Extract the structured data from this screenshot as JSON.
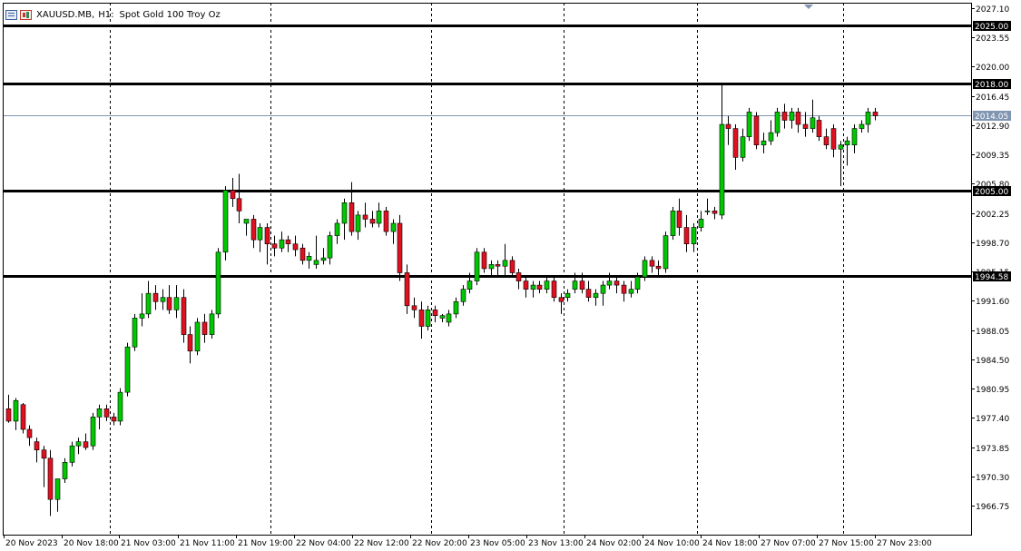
{
  "header": {
    "symbol": "XAUUSD.MB,",
    "timeframe": "H1:",
    "description": "Spot Gold 100 Troy Oz",
    "icons": [
      "market-watch-icon",
      "chart-type-icon"
    ]
  },
  "colors": {
    "background": "#ffffff",
    "bull": "#00c800",
    "bear": "#e01020",
    "wick": "#000000",
    "grid": "#000000",
    "level_line": "#000000",
    "bid_line": "#7f95b1",
    "bid_label_bg": "#7f95b1",
    "level_label_bg": "#000000",
    "label_text": "#ffffff"
  },
  "chart_data": {
    "type": "candlestick",
    "symbol": "XAUUSD.MB",
    "timeframe": "H1",
    "title": "Spot Gold 100 Troy Oz",
    "ylim": [
      1963.5,
      2027.5
    ],
    "y_ticks": [
      "2027.10",
      "2023.55",
      "2020.00",
      "2016.45",
      "2012.90",
      "2009.35",
      "2005.80",
      "2002.25",
      "1998.70",
      "1995.15",
      "1991.60",
      "1988.05",
      "1984.50",
      "1980.95",
      "1977.40",
      "1973.85",
      "1970.30",
      "1966.75"
    ],
    "x_ticks": [
      "20 Nov 2023",
      "20 Nov 18:00",
      "21 Nov 03:00",
      "21 Nov 11:00",
      "21 Nov 19:00",
      "22 Nov 04:00",
      "22 Nov 12:00",
      "22 Nov 20:00",
      "23 Nov 05:00",
      "23 Nov 13:00",
      "24 Nov 02:00",
      "24 Nov 10:00",
      "24 Nov 18:00",
      "27 Nov 07:00",
      "27 Nov 15:00",
      "27 Nov 23:00"
    ],
    "session_separators_after_bar": [
      14,
      37,
      60,
      79,
      98,
      119
    ],
    "horizontal_levels": [
      {
        "price": 2025.0,
        "label": "2025.00"
      },
      {
        "price": 2018.0,
        "label": "2018.00"
      },
      {
        "price": 2005.0,
        "label": "2005.00"
      },
      {
        "price": 1994.58,
        "label": "1994.58"
      }
    ],
    "bid_line": {
      "price": 2014.05,
      "label": "2014.05"
    },
    "bars": [
      {
        "o": 1978.5,
        "h": 1980.2,
        "l": 1976.8,
        "c": 1977.0
      },
      {
        "o": 1977.0,
        "h": 1979.8,
        "l": 1975.9,
        "c": 1979.5
      },
      {
        "o": 1979.0,
        "h": 1979.2,
        "l": 1975.5,
        "c": 1976.0
      },
      {
        "o": 1976.0,
        "h": 1976.5,
        "l": 1974.0,
        "c": 1975.0
      },
      {
        "o": 1974.5,
        "h": 1975.0,
        "l": 1972.0,
        "c": 1973.5
      },
      {
        "o": 1973.5,
        "h": 1974.0,
        "l": 1969.0,
        "c": 1972.5
      },
      {
        "o": 1972.5,
        "h": 1973.5,
        "l": 1965.5,
        "c": 1967.5
      },
      {
        "o": 1967.5,
        "h": 1970.0,
        "l": 1966.0,
        "c": 1970.0
      },
      {
        "o": 1970.0,
        "h": 1972.5,
        "l": 1969.5,
        "c": 1972.0
      },
      {
        "o": 1972.0,
        "h": 1974.5,
        "l": 1971.5,
        "c": 1974.0
      },
      {
        "o": 1974.0,
        "h": 1975.0,
        "l": 1973.0,
        "c": 1974.5
      },
      {
        "o": 1974.5,
        "h": 1975.5,
        "l": 1973.5,
        "c": 1973.8
      },
      {
        "o": 1974.0,
        "h": 1978.0,
        "l": 1973.5,
        "c": 1977.5
      },
      {
        "o": 1977.5,
        "h": 1979.0,
        "l": 1976.0,
        "c": 1978.5
      },
      {
        "o": 1978.5,
        "h": 1979.0,
        "l": 1977.0,
        "c": 1977.5
      },
      {
        "o": 1977.5,
        "h": 1978.0,
        "l": 1976.5,
        "c": 1977.0
      },
      {
        "o": 1977.0,
        "h": 1981.0,
        "l": 1976.5,
        "c": 1980.5
      },
      {
        "o": 1980.5,
        "h": 1986.5,
        "l": 1980.0,
        "c": 1986.0
      },
      {
        "o": 1986.0,
        "h": 1990.0,
        "l": 1985.5,
        "c": 1989.5
      },
      {
        "o": 1989.5,
        "h": 1992.5,
        "l": 1988.5,
        "c": 1990.0
      },
      {
        "o": 1990.0,
        "h": 1994.0,
        "l": 1989.5,
        "c": 1992.5
      },
      {
        "o": 1992.5,
        "h": 1993.5,
        "l": 1990.5,
        "c": 1991.5
      },
      {
        "o": 1991.5,
        "h": 1993.0,
        "l": 1990.5,
        "c": 1992.0
      },
      {
        "o": 1992.0,
        "h": 1993.5,
        "l": 1990.0,
        "c": 1990.5
      },
      {
        "o": 1990.5,
        "h": 1993.5,
        "l": 1989.5,
        "c": 1992.0
      },
      {
        "o": 1992.0,
        "h": 1993.0,
        "l": 1986.5,
        "c": 1987.5
      },
      {
        "o": 1987.5,
        "h": 1988.5,
        "l": 1984.0,
        "c": 1985.5
      },
      {
        "o": 1985.5,
        "h": 1989.5,
        "l": 1985.0,
        "c": 1989.0
      },
      {
        "o": 1989.0,
        "h": 1990.0,
        "l": 1986.5,
        "c": 1987.5
      },
      {
        "o": 1987.5,
        "h": 1990.5,
        "l": 1987.0,
        "c": 1990.0
      },
      {
        "o": 1990.0,
        "h": 1998.0,
        "l": 1989.5,
        "c": 1997.5
      },
      {
        "o": 1997.5,
        "h": 2005.5,
        "l": 1996.5,
        "c": 2005.0
      },
      {
        "o": 2005.0,
        "h": 2006.5,
        "l": 2003.0,
        "c": 2004.0
      },
      {
        "o": 2004.0,
        "h": 2007.0,
        "l": 2001.0,
        "c": 2002.5
      },
      {
        "o": 2001.0,
        "h": 2001.5,
        "l": 1999.5,
        "c": 2001.5
      },
      {
        "o": 2001.5,
        "h": 2002.0,
        "l": 1998.0,
        "c": 1999.0
      },
      {
        "o": 1999.0,
        "h": 2001.0,
        "l": 1997.5,
        "c": 2000.5
      },
      {
        "o": 2000.5,
        "h": 2001.0,
        "l": 1996.0,
        "c": 1998.5
      },
      {
        "o": 1998.5,
        "h": 1999.5,
        "l": 1997.0,
        "c": 1998.0
      },
      {
        "o": 1998.0,
        "h": 2000.0,
        "l": 1997.5,
        "c": 1999.0
      },
      {
        "o": 1999.0,
        "h": 1999.5,
        "l": 1997.5,
        "c": 1998.5
      },
      {
        "o": 1998.5,
        "h": 1999.5,
        "l": 1997.0,
        "c": 1997.8
      },
      {
        "o": 1998.0,
        "h": 1998.5,
        "l": 1996.0,
        "c": 1996.5
      },
      {
        "o": 1996.5,
        "h": 1997.5,
        "l": 1995.5,
        "c": 1997.0
      },
      {
        "o": 1996.0,
        "h": 1999.5,
        "l": 1995.5,
        "c": 1996.5
      },
      {
        "o": 1996.5,
        "h": 1998.0,
        "l": 1996.0,
        "c": 1996.8
      },
      {
        "o": 1996.8,
        "h": 2000.0,
        "l": 1996.0,
        "c": 1999.5
      },
      {
        "o": 1999.5,
        "h": 2001.5,
        "l": 1998.5,
        "c": 2001.0
      },
      {
        "o": 2001.0,
        "h": 2004.0,
        "l": 1999.0,
        "c": 2003.5
      },
      {
        "o": 2003.5,
        "h": 2006.0,
        "l": 1999.5,
        "c": 2000.0
      },
      {
        "o": 2000.0,
        "h": 2002.5,
        "l": 1999.0,
        "c": 2002.0
      },
      {
        "o": 2002.0,
        "h": 2003.5,
        "l": 2000.5,
        "c": 2001.5
      },
      {
        "o": 2001.5,
        "h": 2002.5,
        "l": 2000.5,
        "c": 2001.0
      },
      {
        "o": 2001.0,
        "h": 2003.5,
        "l": 2000.5,
        "c": 2002.5
      },
      {
        "o": 2002.5,
        "h": 2003.0,
        "l": 1999.5,
        "c": 2000.0
      },
      {
        "o": 2000.0,
        "h": 2001.5,
        "l": 1998.5,
        "c": 2001.0
      },
      {
        "o": 2001.0,
        "h": 2002.0,
        "l": 1994.0,
        "c": 1995.0
      },
      {
        "o": 1995.0,
        "h": 1996.0,
        "l": 1990.0,
        "c": 1991.0
      },
      {
        "o": 1991.0,
        "h": 1992.0,
        "l": 1989.5,
        "c": 1990.5
      },
      {
        "o": 1990.5,
        "h": 1991.5,
        "l": 1987.0,
        "c": 1988.5
      },
      {
        "o": 1988.5,
        "h": 1991.0,
        "l": 1988.0,
        "c": 1990.5
      },
      {
        "o": 1990.5,
        "h": 1991.0,
        "l": 1989.0,
        "c": 1989.8
      },
      {
        "o": 1989.5,
        "h": 1990.0,
        "l": 1989.0,
        "c": 1989.8
      },
      {
        "o": 1989.0,
        "h": 1990.5,
        "l": 1988.5,
        "c": 1990.0
      },
      {
        "o": 1990.0,
        "h": 1992.0,
        "l": 1989.5,
        "c": 1991.5
      },
      {
        "o": 1991.5,
        "h": 1993.5,
        "l": 1991.0,
        "c": 1993.0
      },
      {
        "o": 1993.0,
        "h": 1995.0,
        "l": 1992.5,
        "c": 1994.0
      },
      {
        "o": 1994.0,
        "h": 1998.0,
        "l": 1993.5,
        "c": 1997.5
      },
      {
        "o": 1997.5,
        "h": 1998.0,
        "l": 1995.0,
        "c": 1995.5
      },
      {
        "o": 1995.5,
        "h": 1996.5,
        "l": 1994.5,
        "c": 1996.0
      },
      {
        "o": 1996.0,
        "h": 1996.5,
        "l": 1994.5,
        "c": 1995.8
      },
      {
        "o": 1995.8,
        "h": 1998.5,
        "l": 1994.5,
        "c": 1996.5
      },
      {
        "o": 1996.5,
        "h": 1997.0,
        "l": 1994.5,
        "c": 1995.0
      },
      {
        "o": 1995.0,
        "h": 1995.5,
        "l": 1993.0,
        "c": 1994.0
      },
      {
        "o": 1994.0,
        "h": 1994.5,
        "l": 1992.0,
        "c": 1993.0
      },
      {
        "o": 1993.0,
        "h": 1994.0,
        "l": 1992.0,
        "c": 1993.5
      },
      {
        "o": 1993.5,
        "h": 1994.0,
        "l": 1992.5,
        "c": 1993.0
      },
      {
        "o": 1993.0,
        "h": 1994.5,
        "l": 1992.5,
        "c": 1994.0
      },
      {
        "o": 1994.0,
        "h": 1994.5,
        "l": 1991.5,
        "c": 1992.0
      },
      {
        "o": 1992.0,
        "h": 1992.5,
        "l": 1990.0,
        "c": 1991.5
      },
      {
        "o": 1992.0,
        "h": 1993.0,
        "l": 1991.5,
        "c": 1992.5
      },
      {
        "o": 1993.0,
        "h": 1995.0,
        "l": 1992.5,
        "c": 1994.0
      },
      {
        "o": 1994.0,
        "h": 1995.0,
        "l": 1992.5,
        "c": 1993.0
      },
      {
        "o": 1993.0,
        "h": 1994.0,
        "l": 1991.5,
        "c": 1992.0
      },
      {
        "o": 1992.0,
        "h": 1993.0,
        "l": 1991.0,
        "c": 1992.5
      },
      {
        "o": 1992.5,
        "h": 1994.0,
        "l": 1991.0,
        "c": 1993.5
      },
      {
        "o": 1993.5,
        "h": 1995.0,
        "l": 1993.0,
        "c": 1994.0
      },
      {
        "o": 1994.0,
        "h": 1994.5,
        "l": 1992.5,
        "c": 1993.5
      },
      {
        "o": 1993.5,
        "h": 1994.0,
        "l": 1991.5,
        "c": 1992.5
      },
      {
        "o": 1992.5,
        "h": 1994.0,
        "l": 1992.0,
        "c": 1993.0
      },
      {
        "o": 1993.0,
        "h": 1995.0,
        "l": 1992.5,
        "c": 1994.5
      },
      {
        "o": 1994.5,
        "h": 1997.0,
        "l": 1994.0,
        "c": 1996.5
      },
      {
        "o": 1996.5,
        "h": 1997.0,
        "l": 1995.0,
        "c": 1995.8
      },
      {
        "o": 1995.8,
        "h": 1996.5,
        "l": 1994.5,
        "c": 1995.5
      },
      {
        "o": 1995.5,
        "h": 2000.0,
        "l": 1995.0,
        "c": 1999.5
      },
      {
        "o": 1999.5,
        "h": 2003.0,
        "l": 1999.0,
        "c": 2002.5
      },
      {
        "o": 2002.5,
        "h": 2004.0,
        "l": 1999.5,
        "c": 2000.5
      },
      {
        "o": 2000.5,
        "h": 2002.0,
        "l": 1997.5,
        "c": 1998.5
      },
      {
        "o": 1998.5,
        "h": 2001.0,
        "l": 1997.5,
        "c": 2000.5
      },
      {
        "o": 2000.5,
        "h": 2002.5,
        "l": 2000.0,
        "c": 2001.5
      },
      {
        "o": 2002.5,
        "h": 2004.0,
        "l": 2002.0,
        "c": 2002.5
      },
      {
        "o": 2002.5,
        "h": 2003.0,
        "l": 2001.5,
        "c": 2002.2
      },
      {
        "o": 2002.0,
        "h": 2018.0,
        "l": 2001.5,
        "c": 2013.0
      },
      {
        "o": 2013.0,
        "h": 2014.0,
        "l": 2010.5,
        "c": 2012.5
      },
      {
        "o": 2012.5,
        "h": 2013.0,
        "l": 2007.5,
        "c": 2009.0
      },
      {
        "o": 2009.0,
        "h": 2012.5,
        "l": 2008.5,
        "c": 2011.5
      },
      {
        "o": 2011.5,
        "h": 2015.0,
        "l": 2011.0,
        "c": 2014.5
      },
      {
        "o": 2014.0,
        "h": 2014.5,
        "l": 2010.0,
        "c": 2010.5
      },
      {
        "o": 2010.5,
        "h": 2012.0,
        "l": 2009.5,
        "c": 2011.0
      },
      {
        "o": 2011.0,
        "h": 2013.5,
        "l": 2010.5,
        "c": 2012.0
      },
      {
        "o": 2012.0,
        "h": 2015.0,
        "l": 2011.5,
        "c": 2014.5
      },
      {
        "o": 2014.5,
        "h": 2015.5,
        "l": 2012.5,
        "c": 2013.5
      },
      {
        "o": 2013.5,
        "h": 2015.0,
        "l": 2012.5,
        "c": 2014.5
      },
      {
        "o": 2014.5,
        "h": 2015.0,
        "l": 2012.0,
        "c": 2013.0
      },
      {
        "o": 2013.0,
        "h": 2014.5,
        "l": 2011.5,
        "c": 2012.5
      },
      {
        "o": 2012.5,
        "h": 2016.0,
        "l": 2012.0,
        "c": 2013.8
      },
      {
        "o": 2013.5,
        "h": 2014.0,
        "l": 2011.0,
        "c": 2011.5
      },
      {
        "o": 2011.5,
        "h": 2012.5,
        "l": 2010.0,
        "c": 2010.5
      },
      {
        "o": 2012.5,
        "h": 2013.0,
        "l": 2009.0,
        "c": 2010.0
      },
      {
        "o": 2010.0,
        "h": 2011.0,
        "l": 2005.5,
        "c": 2010.5
      },
      {
        "o": 2010.5,
        "h": 2011.5,
        "l": 2008.0,
        "c": 2011.0
      },
      {
        "o": 2010.5,
        "h": 2013.0,
        "l": 2009.5,
        "c": 2012.5
      },
      {
        "o": 2012.5,
        "h": 2013.5,
        "l": 2012.0,
        "c": 2013.0
      },
      {
        "o": 2013.0,
        "h": 2015.0,
        "l": 2012.0,
        "c": 2014.5
      },
      {
        "o": 2014.5,
        "h": 2015.0,
        "l": 2013.5,
        "c": 2014.05
      }
    ]
  }
}
